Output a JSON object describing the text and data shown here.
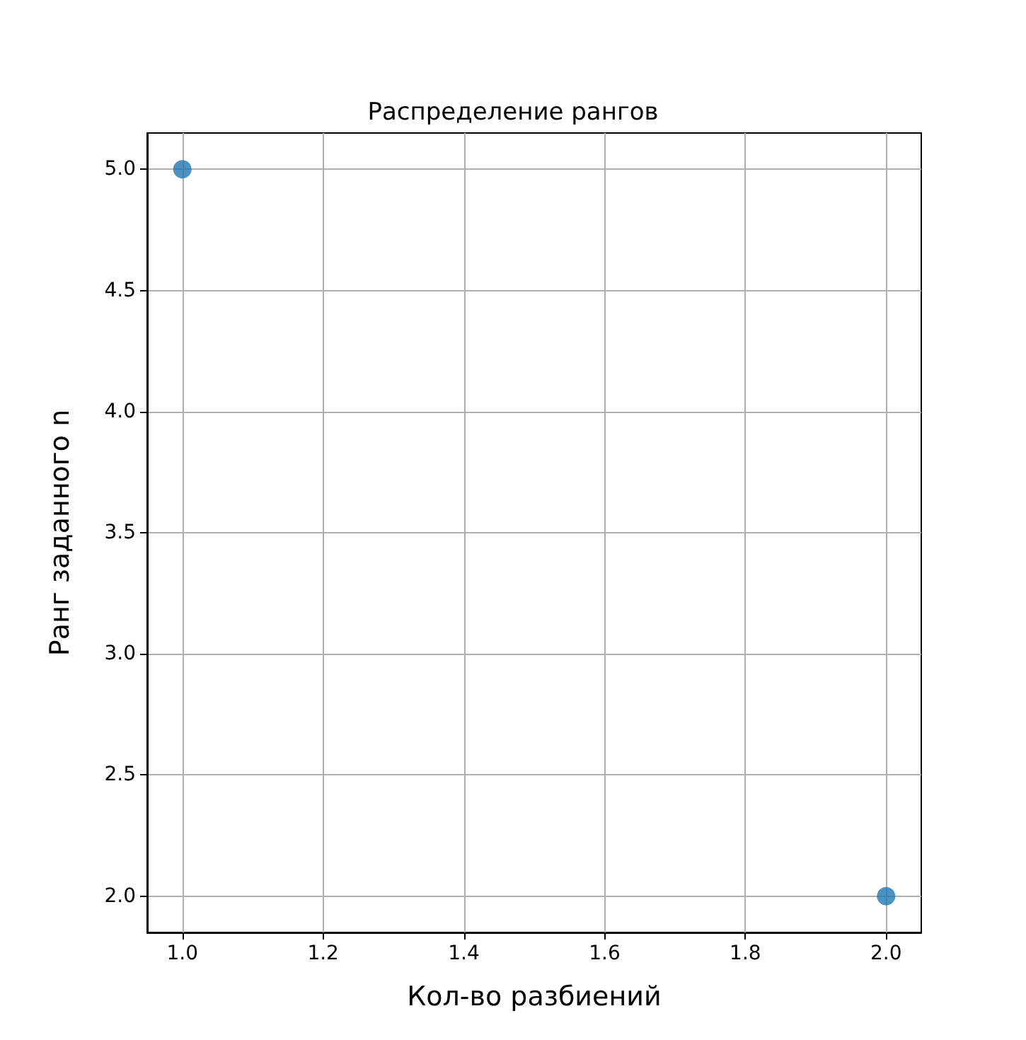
{
  "chart_data": {
    "type": "scatter",
    "title": "Распределение рангов",
    "xlabel": "Кол-во разбиений",
    "ylabel": "Ранг заданного n",
    "x": [
      1,
      2
    ],
    "series": [
      {
        "color": "#1f77b4",
        "values": [
          5,
          2
        ]
      }
    ],
    "xlim": [
      0.95,
      2.05
    ],
    "xticks": [
      {
        "value": 1,
        "label": "1.0"
      },
      1.2,
      1.4,
      1.6,
      1.8,
      {
        "value": 2,
        "label": "2.0"
      }
    ],
    "ylim": [
      1.85,
      5.15
    ],
    "yticks": [
      {
        "value": 2,
        "label": "2.0"
      },
      2.5,
      {
        "value": 3,
        "label": "3.0"
      },
      3.5,
      {
        "value": 4,
        "label": "4.0"
      },
      4.5,
      {
        "value": 5,
        "label": "5.0"
      }
    ],
    "grid": true,
    "marker": "circle"
  }
}
